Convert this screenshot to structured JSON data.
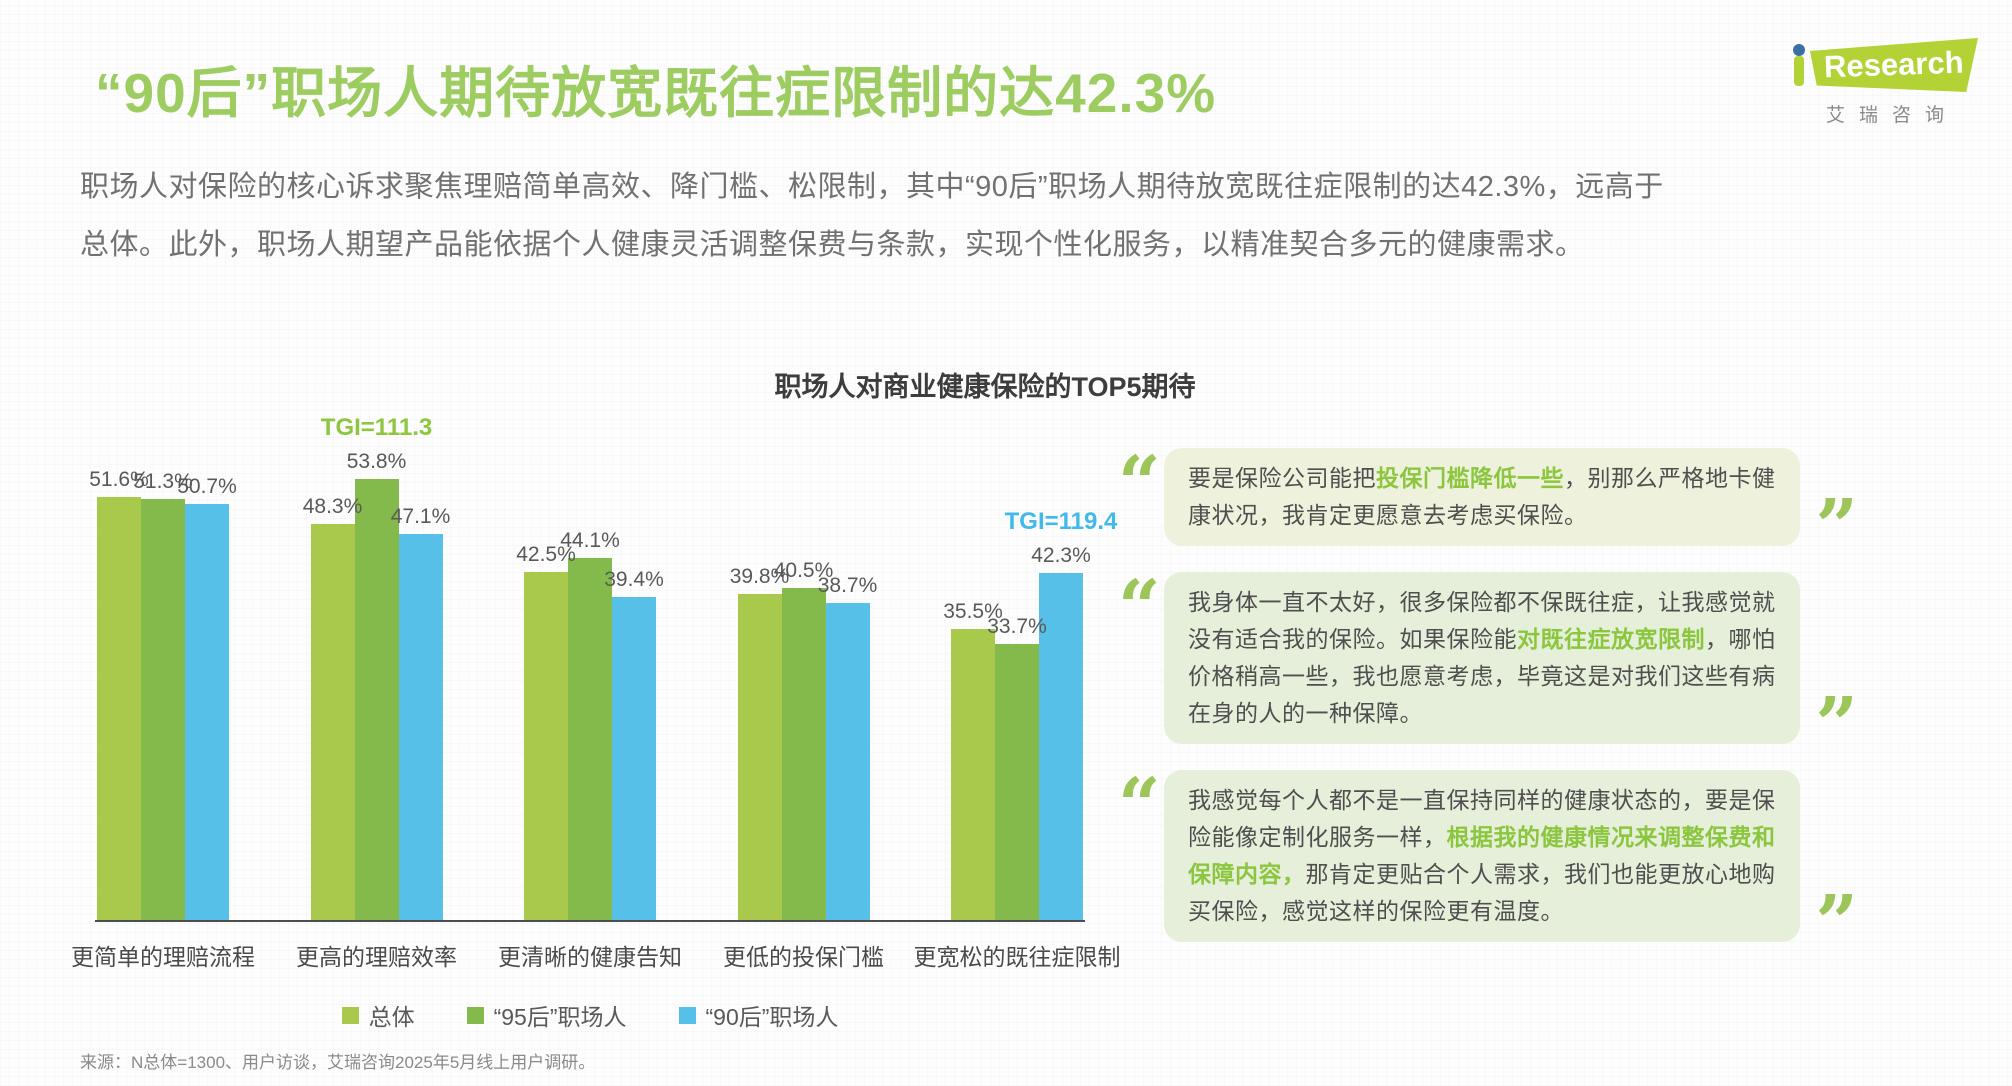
{
  "page": {
    "title": "“90后”职场人期待放宽既往症限制的达42.3%",
    "intro_line1": "职场人对保险的核心诉求聚焦理赔简单高效、降门槛、松限制，其中“90后”职场人期待放宽既往症限制的达42.3%，远高于",
    "intro_line2": "总体。此外，职场人期望产品能依据个人健康灵活调整保费与条款，实现个性化服务，以精准契合多元的健康需求。",
    "source": "来源：N总体=1300、用户访谈，艾瑞咨询2025年5月线上用户调研。"
  },
  "logo": {
    "brand": "Research",
    "subtitle": "艾瑞咨询"
  },
  "colors": {
    "title_green": "#9dcc61",
    "axis": "#4d4d4d",
    "quote_box_bg_first": "#eef2dc",
    "quote_box_bg_rest": "#e5efda"
  },
  "chart_data": {
    "type": "bar",
    "title": "职场人对商业健康保险的TOP5期待",
    "categories": [
      "更简单的理赔流程",
      "更高的理赔效率",
      "更清晰的健康告知",
      "更低的投保门槛",
      "更宽松的既往症限制"
    ],
    "series": [
      {
        "name": "总体",
        "color": "#a9c94d",
        "values": [
          51.6,
          48.3,
          42.5,
          39.8,
          35.5
        ]
      },
      {
        "name": "“95后”职场人",
        "color": "#84ba4b",
        "values": [
          51.3,
          53.8,
          44.1,
          40.5,
          33.7
        ]
      },
      {
        "name": "“90后”职场人",
        "color": "#57c0e8",
        "values": [
          50.7,
          47.1,
          39.4,
          38.7,
          42.3
        ]
      }
    ],
    "annotations": [
      {
        "category_index": 1,
        "series_index": 1,
        "text": "TGI=111.3",
        "color": "#8dc63f"
      },
      {
        "category_index": 4,
        "series_index": 2,
        "text": "TGI=119.4",
        "color": "#41b9e9"
      }
    ],
    "value_suffix": "%",
    "ylim": [
      0,
      58.5
    ],
    "grid": false,
    "legend_position": "bottom"
  },
  "quotes": [
    {
      "segments": [
        {
          "text": "要是保险公司能把",
          "highlight": false
        },
        {
          "text": "投保门槛降低一些",
          "highlight": true
        },
        {
          "text": "，别那么严格地卡健康状况，我肯定更愿意去考虑买保险。",
          "highlight": false
        }
      ]
    },
    {
      "segments": [
        {
          "text": "我身体一直不太好，很多保险都不保既往症，让我感觉就没有适合我的保险。如果保险能",
          "highlight": false
        },
        {
          "text": "对既往症放宽限制",
          "highlight": true
        },
        {
          "text": "，哪怕价格稍高一些，我也愿意考虑，毕竟这是对我们这些有病在身的人的一种保障。",
          "highlight": false
        }
      ]
    },
    {
      "segments": [
        {
          "text": "我感觉每个人都不是一直保持同样的健康状态的，要是保险能像定制化服务一样，",
          "highlight": false
        },
        {
          "text": "根据我的健康情况来调整保费和保障内容，",
          "highlight": true
        },
        {
          "text": "那肯定更贴合个人需求，我们也能更放心地购买保险，感觉这样的保险更有温度。",
          "highlight": false
        }
      ]
    }
  ]
}
